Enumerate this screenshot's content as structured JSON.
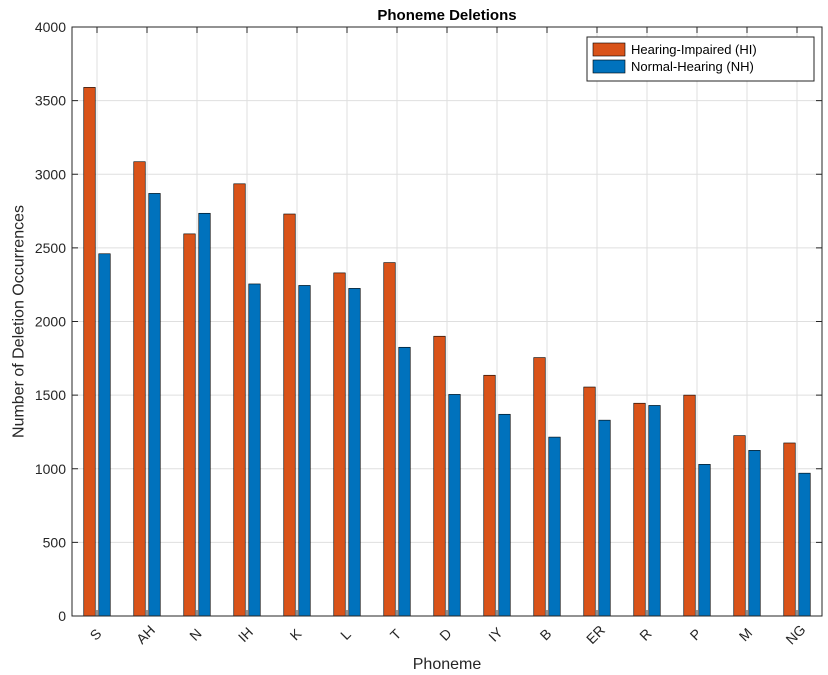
{
  "chart_data": {
    "type": "bar",
    "title": "Phoneme Deletions",
    "xlabel": "Phoneme",
    "ylabel": "Number of Deletion Occurrences",
    "ylim": [
      0,
      4000
    ],
    "yticks": [
      "0",
      "500",
      "1000",
      "1500",
      "2000",
      "2500",
      "3000",
      "3500",
      "4000"
    ],
    "categories": [
      "S",
      "AH",
      "N",
      "IH",
      "K",
      "L",
      "T",
      "D",
      "IY",
      "B",
      "ER",
      "R",
      "P",
      "M",
      "NG"
    ],
    "series": [
      {
        "name": "Hearing-Impaired (HI)",
        "color": "#D95319",
        "values": [
          3590,
          3085,
          2595,
          2935,
          2730,
          2330,
          2400,
          1900,
          1635,
          1755,
          1555,
          1445,
          1500,
          1225,
          1175
        ]
      },
      {
        "name": "Normal-Hearing (NH)",
        "color": "#0072BD",
        "values": [
          2460,
          2870,
          2735,
          2255,
          2245,
          2225,
          1825,
          1505,
          1370,
          1215,
          1330,
          1430,
          1030,
          1125,
          970
        ]
      }
    ],
    "grid": true,
    "legend_position": "top-right"
  }
}
